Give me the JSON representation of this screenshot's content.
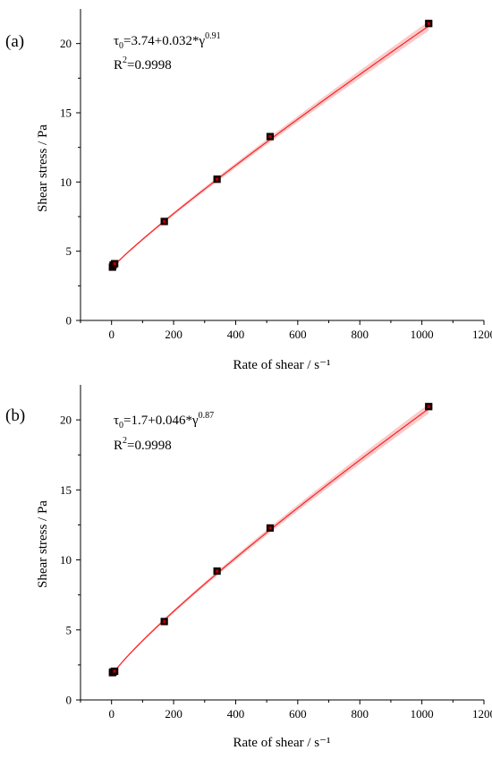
{
  "chart_data": [
    {
      "type": "scatter",
      "panel_label": "(a)",
      "xlabel": "Rate of shear / s⁻¹",
      "ylabel": "Shear stress / Pa",
      "xlim": [
        -100,
        1200
      ],
      "ylim": [
        0,
        22.5
      ],
      "xticks": [
        0,
        200,
        400,
        600,
        800,
        1000,
        1200
      ],
      "yticks": [
        0,
        5,
        10,
        15,
        20
      ],
      "grid": false,
      "legend": "none",
      "equation": {
        "tau": "τ",
        "sub": "0",
        "body": "=3.74+0.032*γ",
        "exp": "0.91",
        "r2_prefix": "R",
        "r2_exp": "2",
        "r2_value": "=0.9998"
      },
      "fit": {
        "a": 3.74,
        "b": 0.032,
        "n": 0.91,
        "color": "#ff2020",
        "band_color": "#f4a0a0"
      },
      "series": [
        {
          "marker_color": "#1a0000",
          "x": [
            3,
            5,
            10,
            170,
            340,
            511,
            1022
          ],
          "y": [
            3.85,
            4.0,
            4.1,
            7.15,
            10.2,
            13.28,
            21.45
          ]
        }
      ]
    },
    {
      "type": "scatter",
      "panel_label": "(b)",
      "xlabel": "Rate of shear / s⁻¹",
      "ylabel": "Shear stress / Pa",
      "xlim": [
        -100,
        1200
      ],
      "ylim": [
        0,
        22.5
      ],
      "xticks": [
        0,
        200,
        400,
        600,
        800,
        1000,
        1200
      ],
      "yticks": [
        0,
        5,
        10,
        15,
        20
      ],
      "grid": false,
      "legend": "none",
      "equation": {
        "tau": "τ",
        "sub": "0",
        "body": "=1.7+0.046*γ",
        "exp": "0.87",
        "r2_prefix": "R",
        "r2_exp": "2",
        "r2_value": "=0.9998"
      },
      "fit": {
        "a": 1.7,
        "b": 0.046,
        "n": 0.87,
        "color": "#ff2020",
        "band_color": "#f4a0a0"
      },
      "series": [
        {
          "marker_color": "#1a0000",
          "x": [
            3,
            5,
            10,
            170,
            340,
            511,
            1022
          ],
          "y": [
            1.95,
            2.0,
            2.05,
            5.6,
            9.2,
            12.28,
            20.95
          ]
        }
      ]
    }
  ]
}
